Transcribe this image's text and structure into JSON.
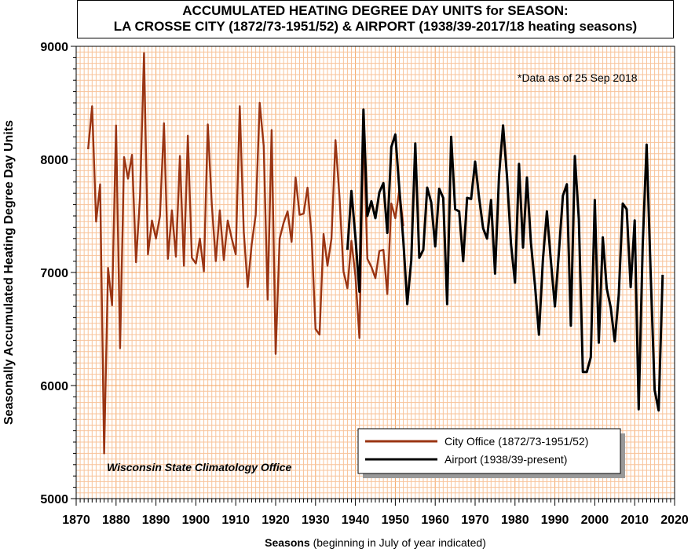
{
  "chart_data": {
    "type": "line",
    "title": "ACCUMULATED HEATING DEGREE DAY UNITS for SEASON:",
    "subtitle": "LA CROSSE CITY (1872/73-1951/52) & AIRPORT (1938/39-2017/18 heating seasons)",
    "xlabel_bold": "Seasons",
    "xlabel_rest": "(beginning in July of year indicated)",
    "ylabel": "Seasonally Accumulated Heating Degree Day Units",
    "xlim": [
      1870,
      2020
    ],
    "ylim": [
      5000,
      9000
    ],
    "x_ticks": [
      1870,
      1880,
      1890,
      1900,
      1910,
      1920,
      1930,
      1940,
      1950,
      1960,
      1970,
      1980,
      1990,
      2000,
      2010,
      2020
    ],
    "y_ticks": [
      5000,
      6000,
      7000,
      8000,
      9000
    ],
    "grid": true,
    "legend_position": "bottom-right",
    "annotation": "*Data as of 25 Sep 2018",
    "credit": "Wisconsin State Climatology Office",
    "series": [
      {
        "name": "City Office (1872/73-1951/52)",
        "color": "#9a3412",
        "x_start": 1873,
        "values": [
          8090,
          8470,
          7450,
          7780,
          5400,
          7040,
          6710,
          8300,
          6330,
          8020,
          7830,
          8040,
          7090,
          7670,
          8940,
          7160,
          7460,
          7300,
          7500,
          8320,
          7120,
          7550,
          7140,
          8030,
          7060,
          8210,
          7130,
          7080,
          7300,
          7010,
          8310,
          7600,
          7100,
          7550,
          7110,
          7460,
          7300,
          7160,
          8470,
          7360,
          6870,
          7250,
          7510,
          8500,
          8120,
          6760,
          8260,
          6280,
          7300,
          7440,
          7540,
          7270,
          7840,
          7510,
          7520,
          7750,
          7330,
          6500,
          6450,
          7340,
          7060,
          7300,
          8170,
          7670,
          7010,
          6860,
          7280,
          6970,
          6420,
          8300,
          7120,
          7050,
          6950,
          7190,
          7200,
          6810,
          7610,
          7480,
          7730,
          7410
        ]
      },
      {
        "name": "Airport (1938/39-present)",
        "color": "#000000",
        "x_start": 1938,
        "values": [
          7200,
          7720,
          7310,
          6830,
          8440,
          7500,
          7630,
          7480,
          7710,
          7790,
          7350,
          8110,
          8220,
          7740,
          7280,
          6720,
          7110,
          8140,
          7130,
          7200,
          7750,
          7620,
          7230,
          7740,
          7660,
          6720,
          8200,
          7560,
          7540,
          7100,
          7660,
          7650,
          7980,
          7660,
          7390,
          7300,
          7640,
          6990,
          7860,
          8300,
          7850,
          7250,
          6910,
          7960,
          7220,
          7840,
          7260,
          6890,
          6450,
          7120,
          7540,
          7100,
          6700,
          7180,
          7680,
          7780,
          6530,
          8030,
          7470,
          6120,
          6120,
          6250,
          7640,
          6380,
          7310,
          6860,
          6690,
          6390,
          6800,
          7610,
          7560,
          6870,
          7460,
          5790,
          7240,
          8130,
          7000,
          5960,
          5780,
          6980
        ]
      }
    ]
  }
}
